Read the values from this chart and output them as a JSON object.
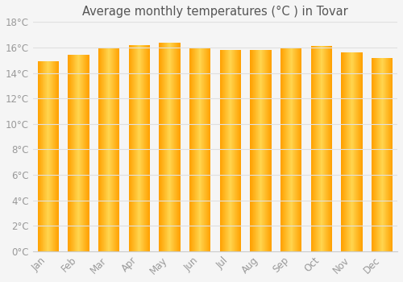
{
  "title": "Average monthly temperatures (°C ) in Tovar",
  "months": [
    "Jan",
    "Feb",
    "Mar",
    "Apr",
    "May",
    "Jun",
    "Jul",
    "Aug",
    "Sep",
    "Oct",
    "Nov",
    "Dec"
  ],
  "values": [
    14.9,
    15.4,
    16.0,
    16.2,
    16.4,
    16.0,
    15.8,
    15.8,
    15.9,
    16.1,
    15.6,
    15.2
  ],
  "bar_color_light": "#FFD54F",
  "bar_color_dark": "#FFA000",
  "background_color": "#F5F5F5",
  "grid_color": "#E0E0E0",
  "text_color": "#999999",
  "title_color": "#555555",
  "ylim": [
    0,
    18
  ],
  "ytick_step": 2,
  "title_fontsize": 10.5,
  "tick_fontsize": 8.5,
  "bar_width": 0.7
}
